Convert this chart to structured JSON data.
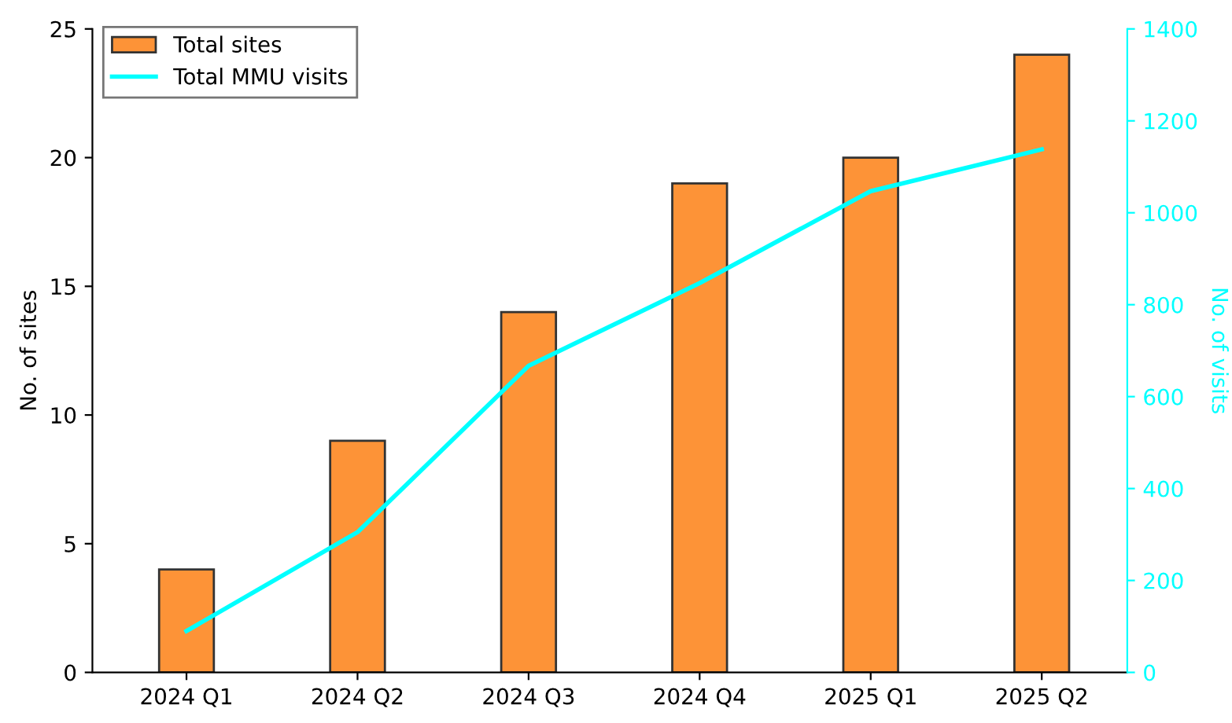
{
  "chart_data": {
    "type": "bar",
    "categories": [
      "2024 Q1",
      "2024 Q2",
      "2024 Q3",
      "2024 Q4",
      "2025 Q1",
      "2025 Q2"
    ],
    "series": [
      {
        "name": "Total sites",
        "color": "#fd9337",
        "values": [
          4,
          9,
          14,
          19,
          20,
          24
        ]
      },
      {
        "name": "Total MMU visits",
        "type": "line",
        "axis": "y2",
        "color": "#00ffff",
        "values": [
          90,
          305,
          667,
          847,
          1047,
          1138
        ]
      }
    ],
    "ylabel": "No. of sites",
    "y2label": "No. of visits",
    "ylim": [
      0,
      25
    ],
    "yticks": [
      0,
      5,
      10,
      15,
      20,
      25
    ],
    "y2lim": [
      0,
      1400
    ],
    "y2ticks": [
      0,
      200,
      400,
      600,
      800,
      1000,
      1200,
      1400
    ],
    "legend": "top left",
    "grid": false,
    "marker": "none"
  }
}
